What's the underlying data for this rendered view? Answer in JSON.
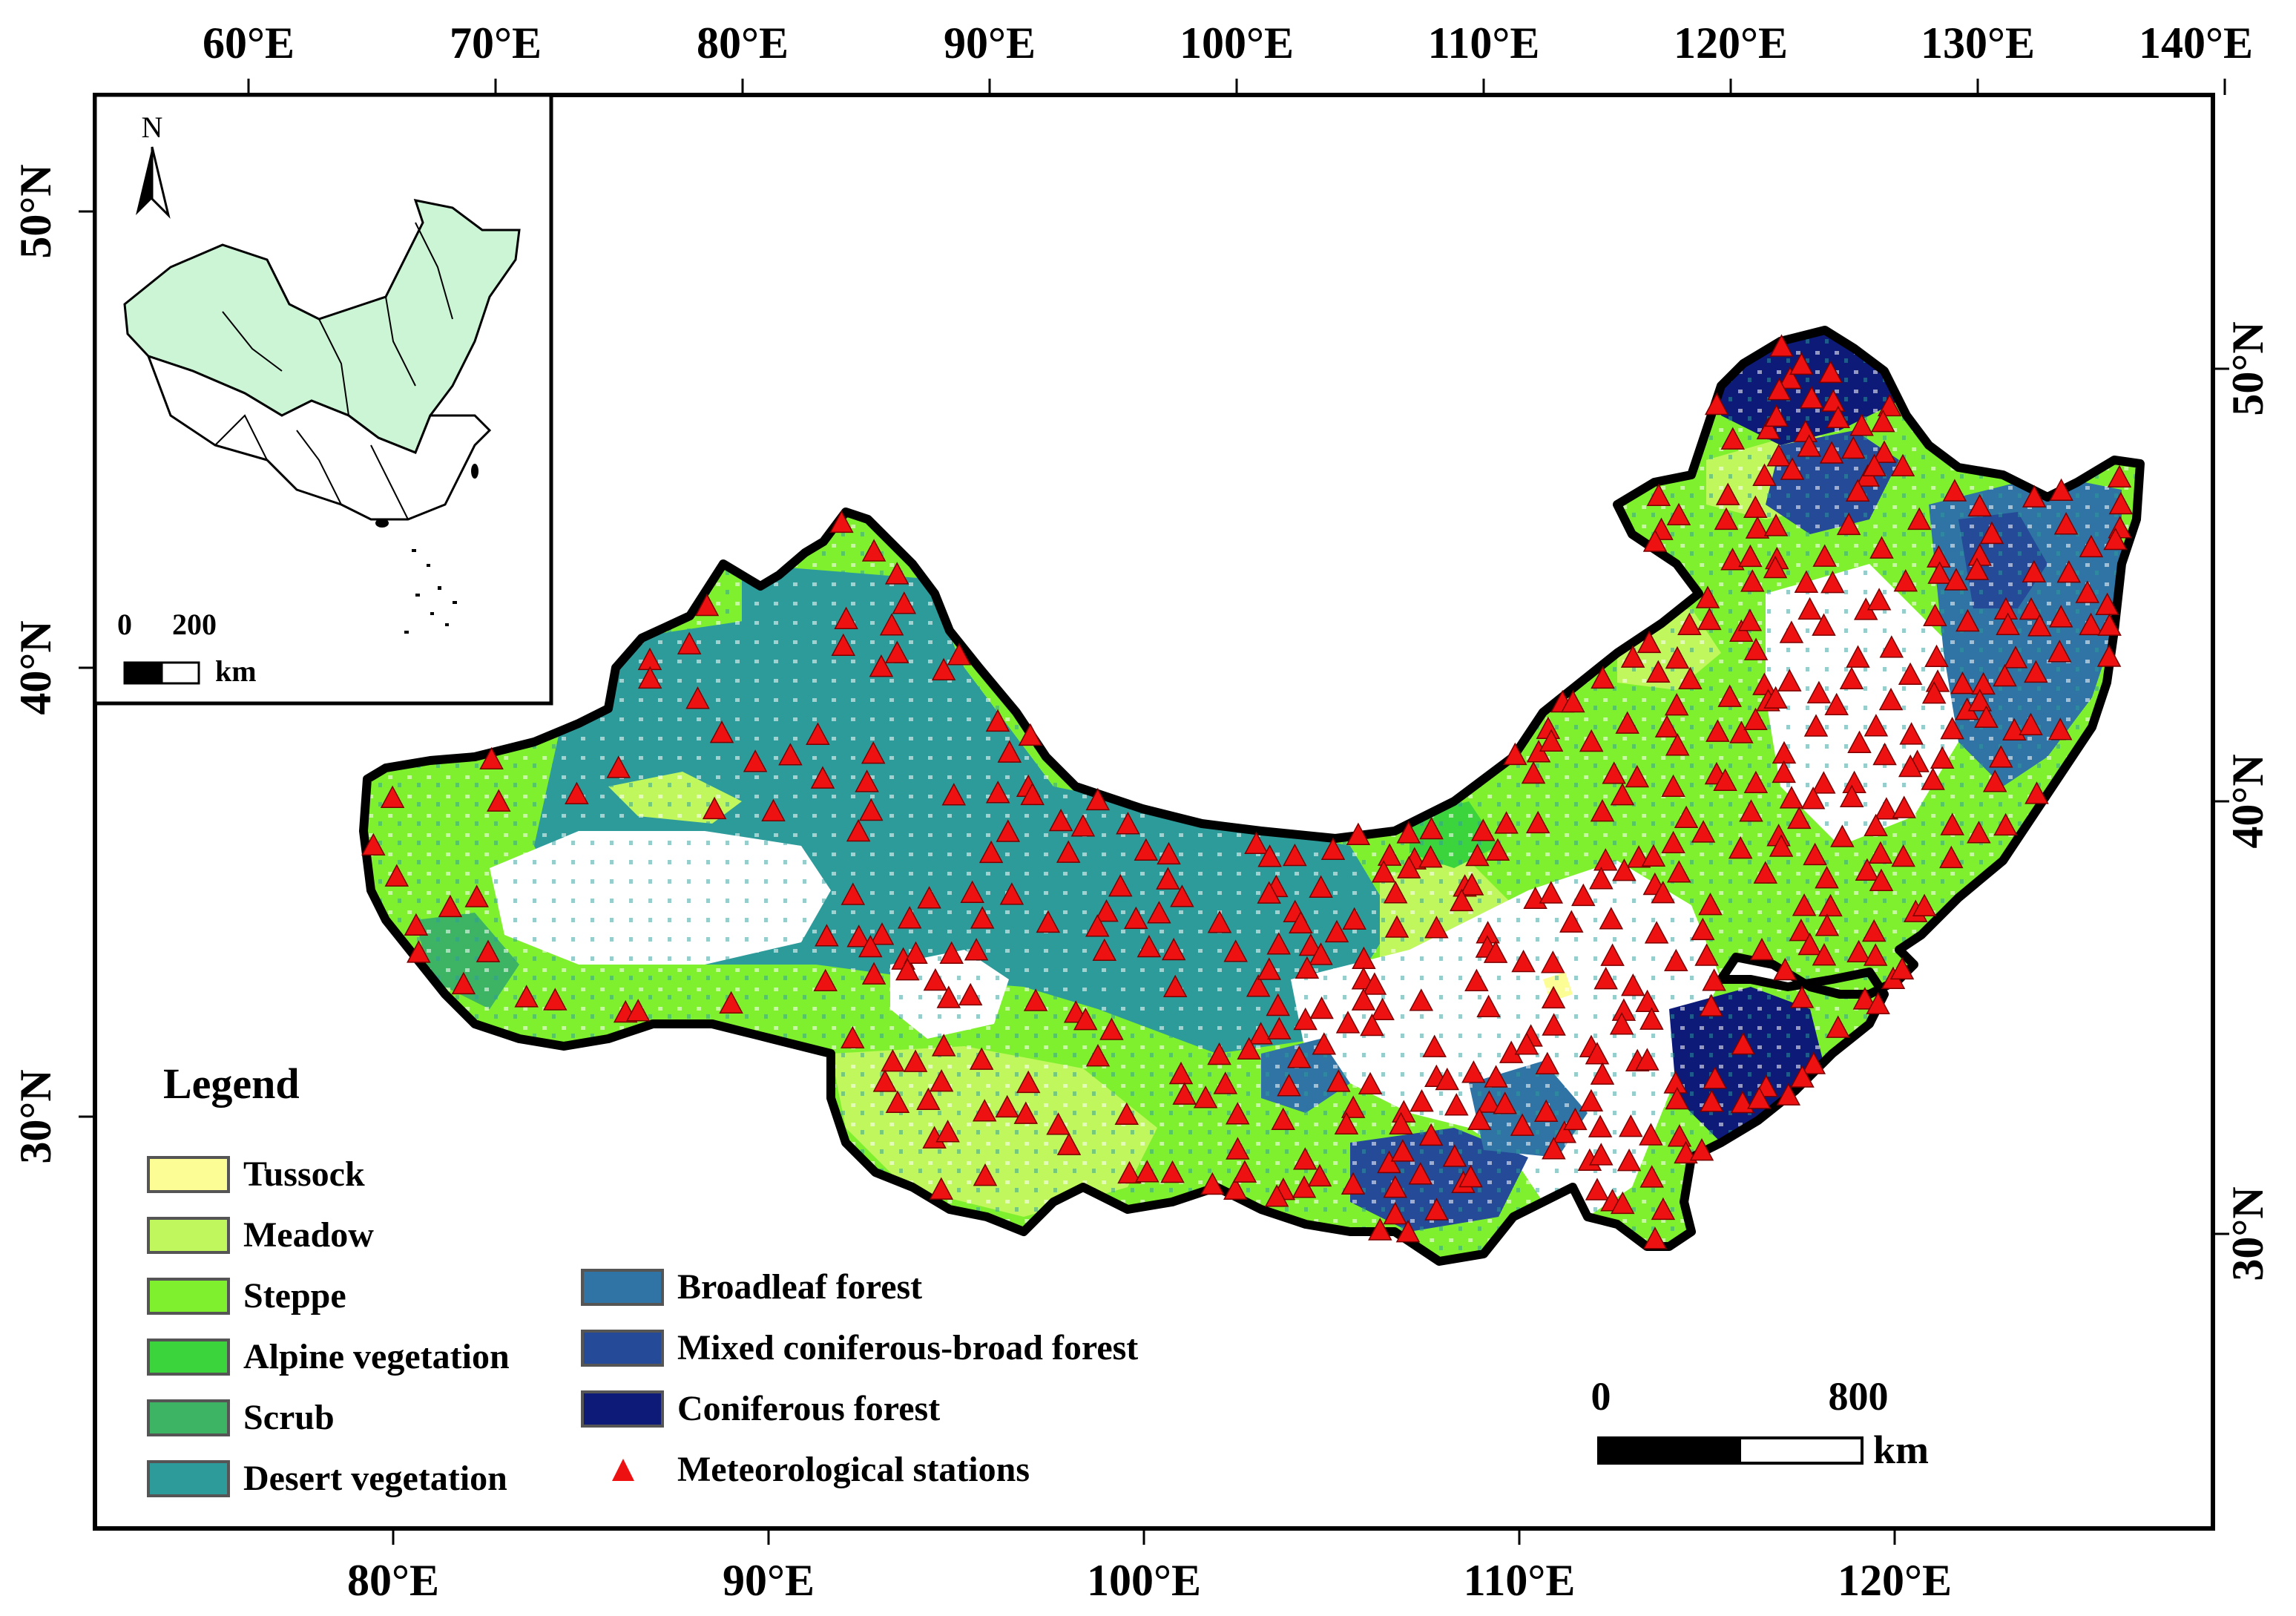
{
  "map": {
    "top_axis_labels": [
      "60°E",
      "70°E",
      "80°E",
      "90°E",
      "100°E",
      "110°E",
      "120°E",
      "130°E",
      "140°E"
    ],
    "bottom_axis_labels": [
      "80°E",
      "90°E",
      "100°E",
      "110°E",
      "120°E"
    ],
    "left_axis_labels": [
      "50°N",
      "40°N",
      "30°N"
    ],
    "right_axis_labels": [
      "50°N",
      "40°N",
      "30°N"
    ],
    "scale_bar": {
      "zero": "0",
      "distance": "800",
      "unit": "km"
    }
  },
  "inset": {
    "north_label": "N",
    "scale_zero": "0",
    "scale_distance": "200",
    "scale_unit": "km",
    "region_fill_color": "#ccf5d6"
  },
  "legend": {
    "title": "Legend",
    "items": [
      {
        "label": "Tussock",
        "color": "#fdfd96"
      },
      {
        "label": "Meadow",
        "color": "#bff75c"
      },
      {
        "label": "Steppe",
        "color": "#7ff02e"
      },
      {
        "label": "Alpine vegetation",
        "color": "#3cd43c"
      },
      {
        "label": "Scrub",
        "color": "#3cb464"
      },
      {
        "label": "Desert vegetation",
        "color": "#2e9b9b"
      },
      {
        "label": "Broadleaf forest",
        "color": "#2f74a4"
      },
      {
        "label": "Mixed coniferous-broad forest",
        "color": "#244a98"
      },
      {
        "label": "Coniferous forest",
        "color": "#0d1a78"
      },
      {
        "label": "Meteorological stations",
        "color": "#ee1111"
      }
    ]
  }
}
